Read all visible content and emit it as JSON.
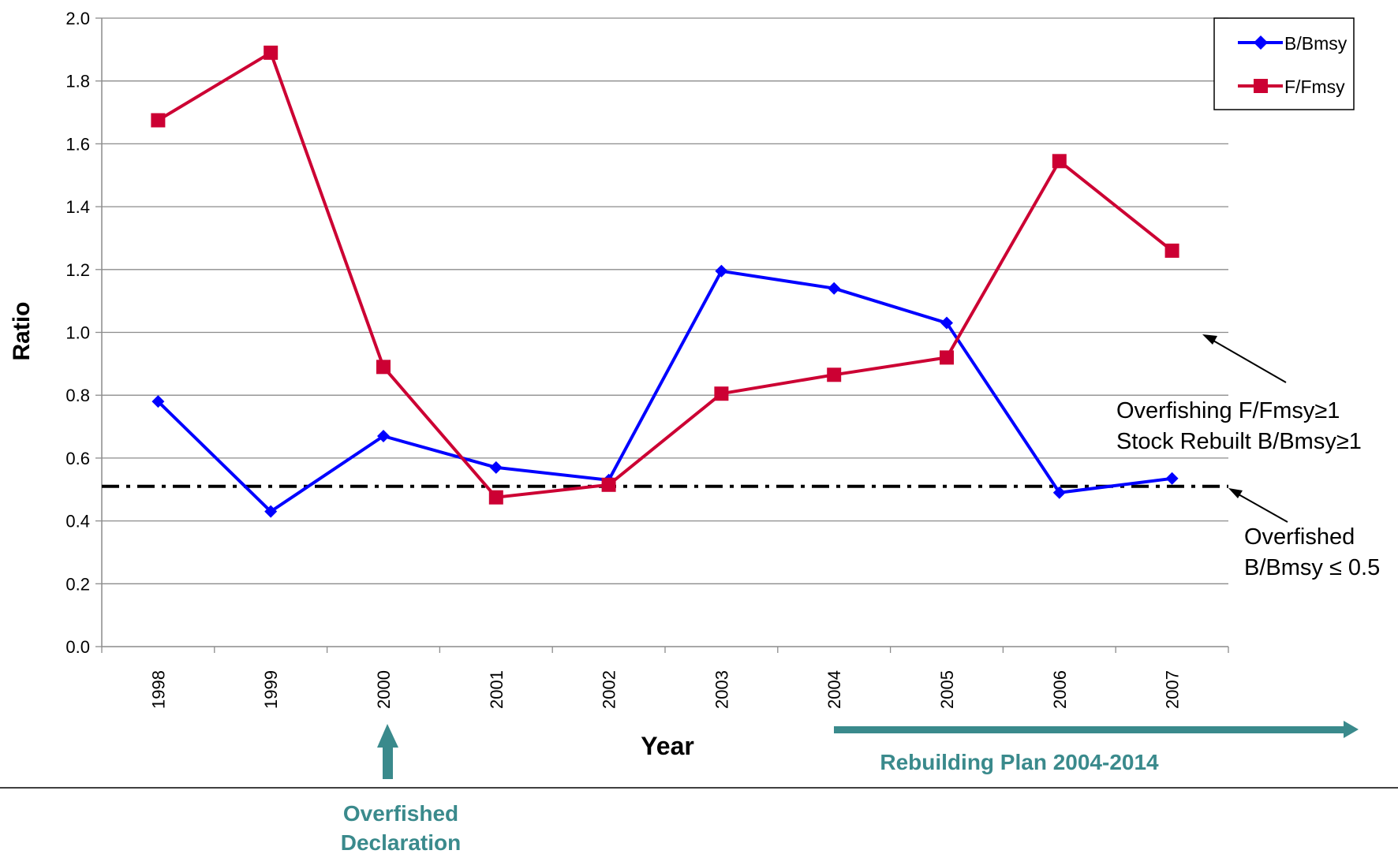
{
  "chart_data": {
    "type": "line",
    "xlabel": "Year",
    "ylabel": "Ratio",
    "categories": [
      "1998",
      "1999",
      "2000",
      "2001",
      "2002",
      "2003",
      "2004",
      "2005",
      "2006",
      "2007"
    ],
    "ylim": [
      0,
      2.0
    ],
    "yticks": [
      0.0,
      0.2,
      0.4,
      0.6,
      0.8,
      1.0,
      1.2,
      1.4,
      1.6,
      1.8,
      2.0
    ],
    "ytick_labels": [
      "0.0",
      "0.2",
      "0.4",
      "0.6",
      "0.8",
      "1.0",
      "1.2",
      "1.4",
      "1.6",
      "1.8",
      "2.0"
    ],
    "grid": true,
    "legend_position": "top-right",
    "series": [
      {
        "name": "B/Bmsy",
        "color": "#0000FF",
        "marker": "diamond",
        "values": [
          0.78,
          0.43,
          0.67,
          0.57,
          0.53,
          1.195,
          1.14,
          1.03,
          0.49,
          0.535
        ]
      },
      {
        "name": "F/Fmsy",
        "color": "#CC0033",
        "marker": "square",
        "values": [
          1.675,
          1.89,
          0.89,
          0.475,
          0.515,
          0.805,
          0.865,
          0.92,
          1.545,
          1.26
        ]
      }
    ],
    "reference_line": {
      "value": 0.51,
      "style": "dash-dot",
      "color": "#000000"
    },
    "annotations": {
      "overfishing_line1": "Overfishing F/Fmsy≥1",
      "overfishing_line2": "Stock Rebuilt B/Bmsy≥1",
      "overfished_line1": "Overfished",
      "overfished_line2": "B/Bmsy ≤ 0.5",
      "declaration_line1": "Overfished",
      "declaration_line2": "Declaration",
      "rebuilding": "Rebuilding Plan 2004-2014"
    },
    "accent_color": "#3A8A8C"
  }
}
